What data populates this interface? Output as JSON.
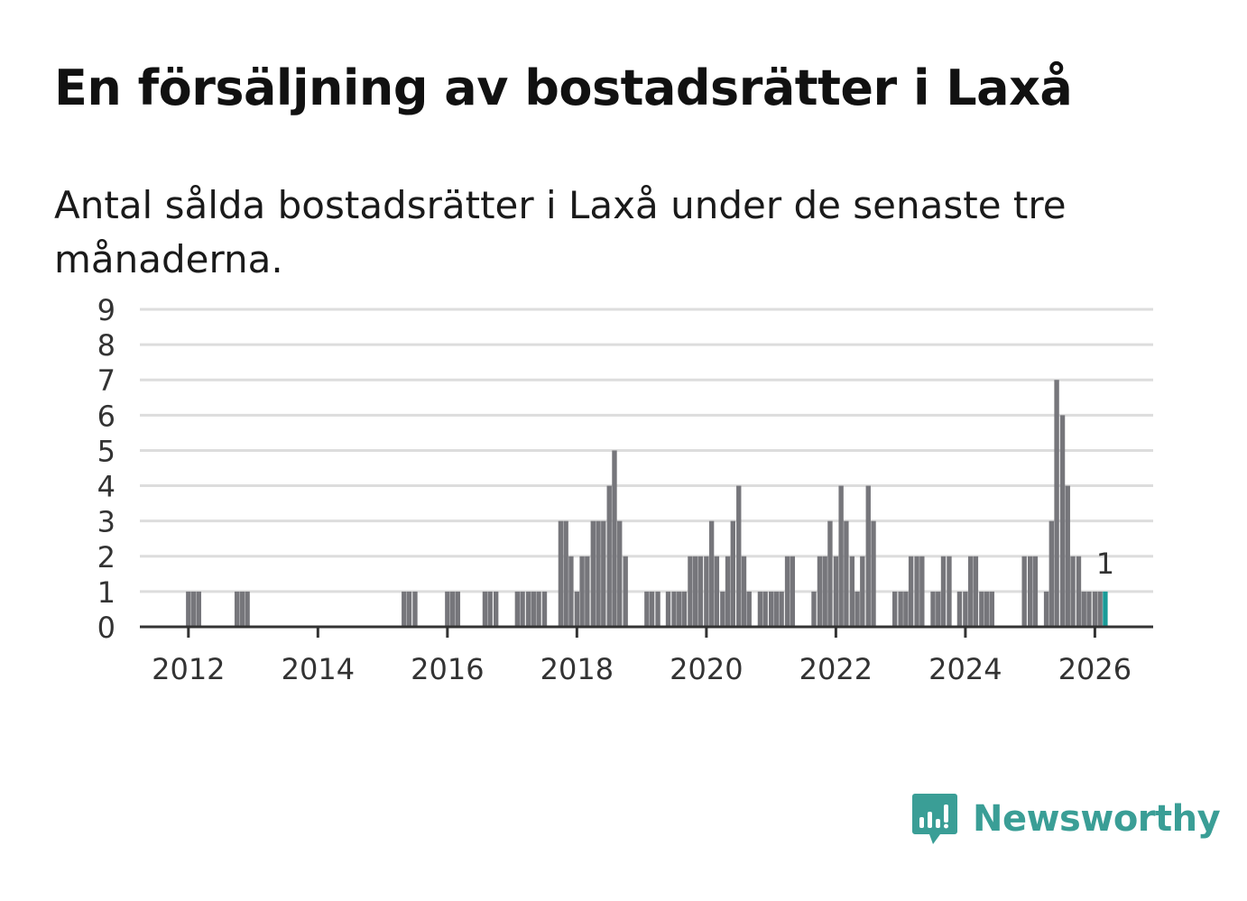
{
  "title": "En försäljning av bostadsrätter i Laxå",
  "subtitle": "Antal sålda bostadsrätter i Laxå under de senaste tre månaderna.",
  "brand": {
    "name": "Newsworthy",
    "color": "#3a9e96"
  },
  "colors": {
    "bar": "#76767b",
    "highlight": "#1a9b98",
    "grid": "#dddddd",
    "axis": "#333333"
  },
  "chart_data": {
    "type": "bar",
    "title": "En försäljning av bostadsrätter i Laxå",
    "xlabel": "",
    "ylabel": "",
    "ylim": [
      0,
      9
    ],
    "yticks": [
      "0",
      "1",
      "2",
      "3",
      "4",
      "5",
      "6",
      "7",
      "8",
      "9"
    ],
    "xlim": [
      2011.25,
      2026.9
    ],
    "xticks": [
      "2012",
      "2014",
      "2016",
      "2018",
      "2020",
      "2022",
      "2024",
      "2026"
    ],
    "grid": true,
    "bar_width_years": 0.075,
    "highlight_label": "1",
    "series": [
      {
        "name": "Antal sålda bostadsrätter",
        "x": [
          2012.0,
          2012.08,
          2012.16,
          2012.75,
          2012.83,
          2012.91,
          2015.33,
          2015.41,
          2015.5,
          2016.0,
          2016.08,
          2016.16,
          2016.58,
          2016.66,
          2016.75,
          2017.08,
          2017.16,
          2017.25,
          2017.33,
          2017.41,
          2017.5,
          2017.75,
          2017.83,
          2017.91,
          2018.0,
          2018.08,
          2018.16,
          2018.25,
          2018.33,
          2018.41,
          2018.5,
          2018.58,
          2018.66,
          2018.75,
          2019.08,
          2019.16,
          2019.25,
          2019.41,
          2019.5,
          2019.58,
          2019.66,
          2019.75,
          2019.83,
          2019.91,
          2020.0,
          2020.08,
          2020.16,
          2020.25,
          2020.33,
          2020.41,
          2020.5,
          2020.58,
          2020.66,
          2020.83,
          2020.91,
          2021.0,
          2021.08,
          2021.16,
          2021.25,
          2021.33,
          2021.66,
          2021.75,
          2021.83,
          2021.91,
          2022.0,
          2022.08,
          2022.16,
          2022.25,
          2022.33,
          2022.41,
          2022.5,
          2022.58,
          2022.91,
          2023.0,
          2023.08,
          2023.16,
          2023.25,
          2023.33,
          2023.5,
          2023.58,
          2023.66,
          2023.75,
          2023.91,
          2024.0,
          2024.08,
          2024.16,
          2024.25,
          2024.33,
          2024.41,
          2024.91,
          2025.0,
          2025.08,
          2025.25,
          2025.33,
          2025.41,
          2025.5,
          2025.58,
          2025.66,
          2025.75,
          2025.83,
          2025.91,
          2026.0,
          2026.08,
          2026.16
        ],
        "values": [
          1,
          1,
          1,
          1,
          1,
          1,
          1,
          1,
          1,
          1,
          1,
          1,
          1,
          1,
          1,
          1,
          1,
          1,
          1,
          1,
          1,
          3,
          3,
          2,
          1,
          2,
          2,
          3,
          3,
          3,
          4,
          5,
          3,
          2,
          1,
          1,
          1,
          1,
          1,
          1,
          1,
          2,
          2,
          2,
          2,
          3,
          2,
          1,
          2,
          3,
          4,
          2,
          1,
          1,
          1,
          1,
          1,
          1,
          2,
          2,
          1,
          2,
          2,
          3,
          2,
          4,
          3,
          2,
          1,
          2,
          4,
          3,
          1,
          1,
          1,
          2,
          2,
          2,
          1,
          1,
          2,
          2,
          1,
          1,
          2,
          2,
          1,
          1,
          1,
          2,
          2,
          2,
          1,
          3,
          7,
          6,
          4,
          2,
          2,
          1,
          1,
          1,
          1,
          1
        ]
      }
    ]
  }
}
